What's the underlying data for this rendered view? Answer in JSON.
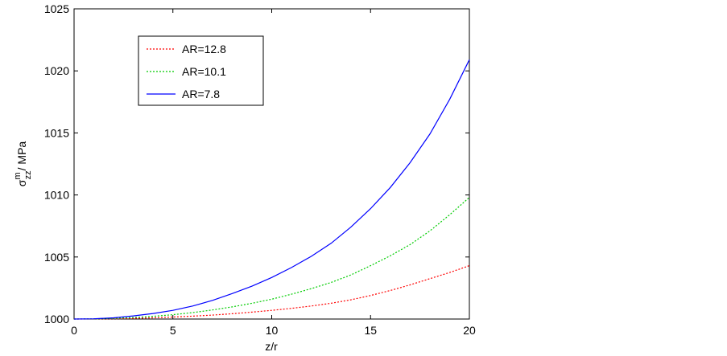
{
  "chart_data": {
    "type": "line",
    "xlabel": "z/r",
    "ylabel": {
      "base": "σ",
      "sup": "m",
      "sub": "zz",
      "unit": "/ MPa"
    },
    "x": [
      0,
      1,
      2,
      3,
      4,
      5,
      6,
      7,
      8,
      9,
      10,
      11,
      12,
      13,
      14,
      15,
      16,
      17,
      18,
      19,
      20
    ],
    "series": [
      {
        "name": "AR=12.8",
        "color": "#ff0000",
        "dash": "dotted",
        "values": [
          1000,
          1000,
          1000.02,
          1000.05,
          1000.1,
          1000.16,
          1000.23,
          1000.32,
          1000.43,
          1000.56,
          1000.7,
          1000.86,
          1001.05,
          1001.27,
          1001.55,
          1001.9,
          1002.3,
          1002.75,
          1003.25,
          1003.75,
          1004.3
        ]
      },
      {
        "name": "AR=10.1",
        "color": "#00cc00",
        "dash": "dotted",
        "values": [
          1000,
          1000.01,
          1000.05,
          1000.12,
          1000.22,
          1000.35,
          1000.52,
          1000.73,
          1000.98,
          1001.27,
          1001.6,
          1002.0,
          1002.45,
          1002.95,
          1003.55,
          1004.3,
          1005.1,
          1006.0,
          1007.1,
          1008.4,
          1009.8
        ]
      },
      {
        "name": "AR=7.8",
        "color": "#0000ff",
        "dash": "solid",
        "values": [
          1000,
          1000.02,
          1000.1,
          1000.25,
          1000.45,
          1000.7,
          1001.05,
          1001.5,
          1002.05,
          1002.65,
          1003.35,
          1004.15,
          1005.05,
          1006.1,
          1007.4,
          1008.9,
          1010.6,
          1012.6,
          1014.9,
          1017.7,
          1020.9
        ]
      }
    ],
    "xlim": [
      0,
      20
    ],
    "xticks": [
      0,
      5,
      10,
      15,
      20
    ],
    "ylim": [
      1000,
      1025
    ],
    "yticks": [
      1000,
      1005,
      1010,
      1015,
      1020,
      1025
    ],
    "grid": false,
    "legend": "upper left"
  }
}
